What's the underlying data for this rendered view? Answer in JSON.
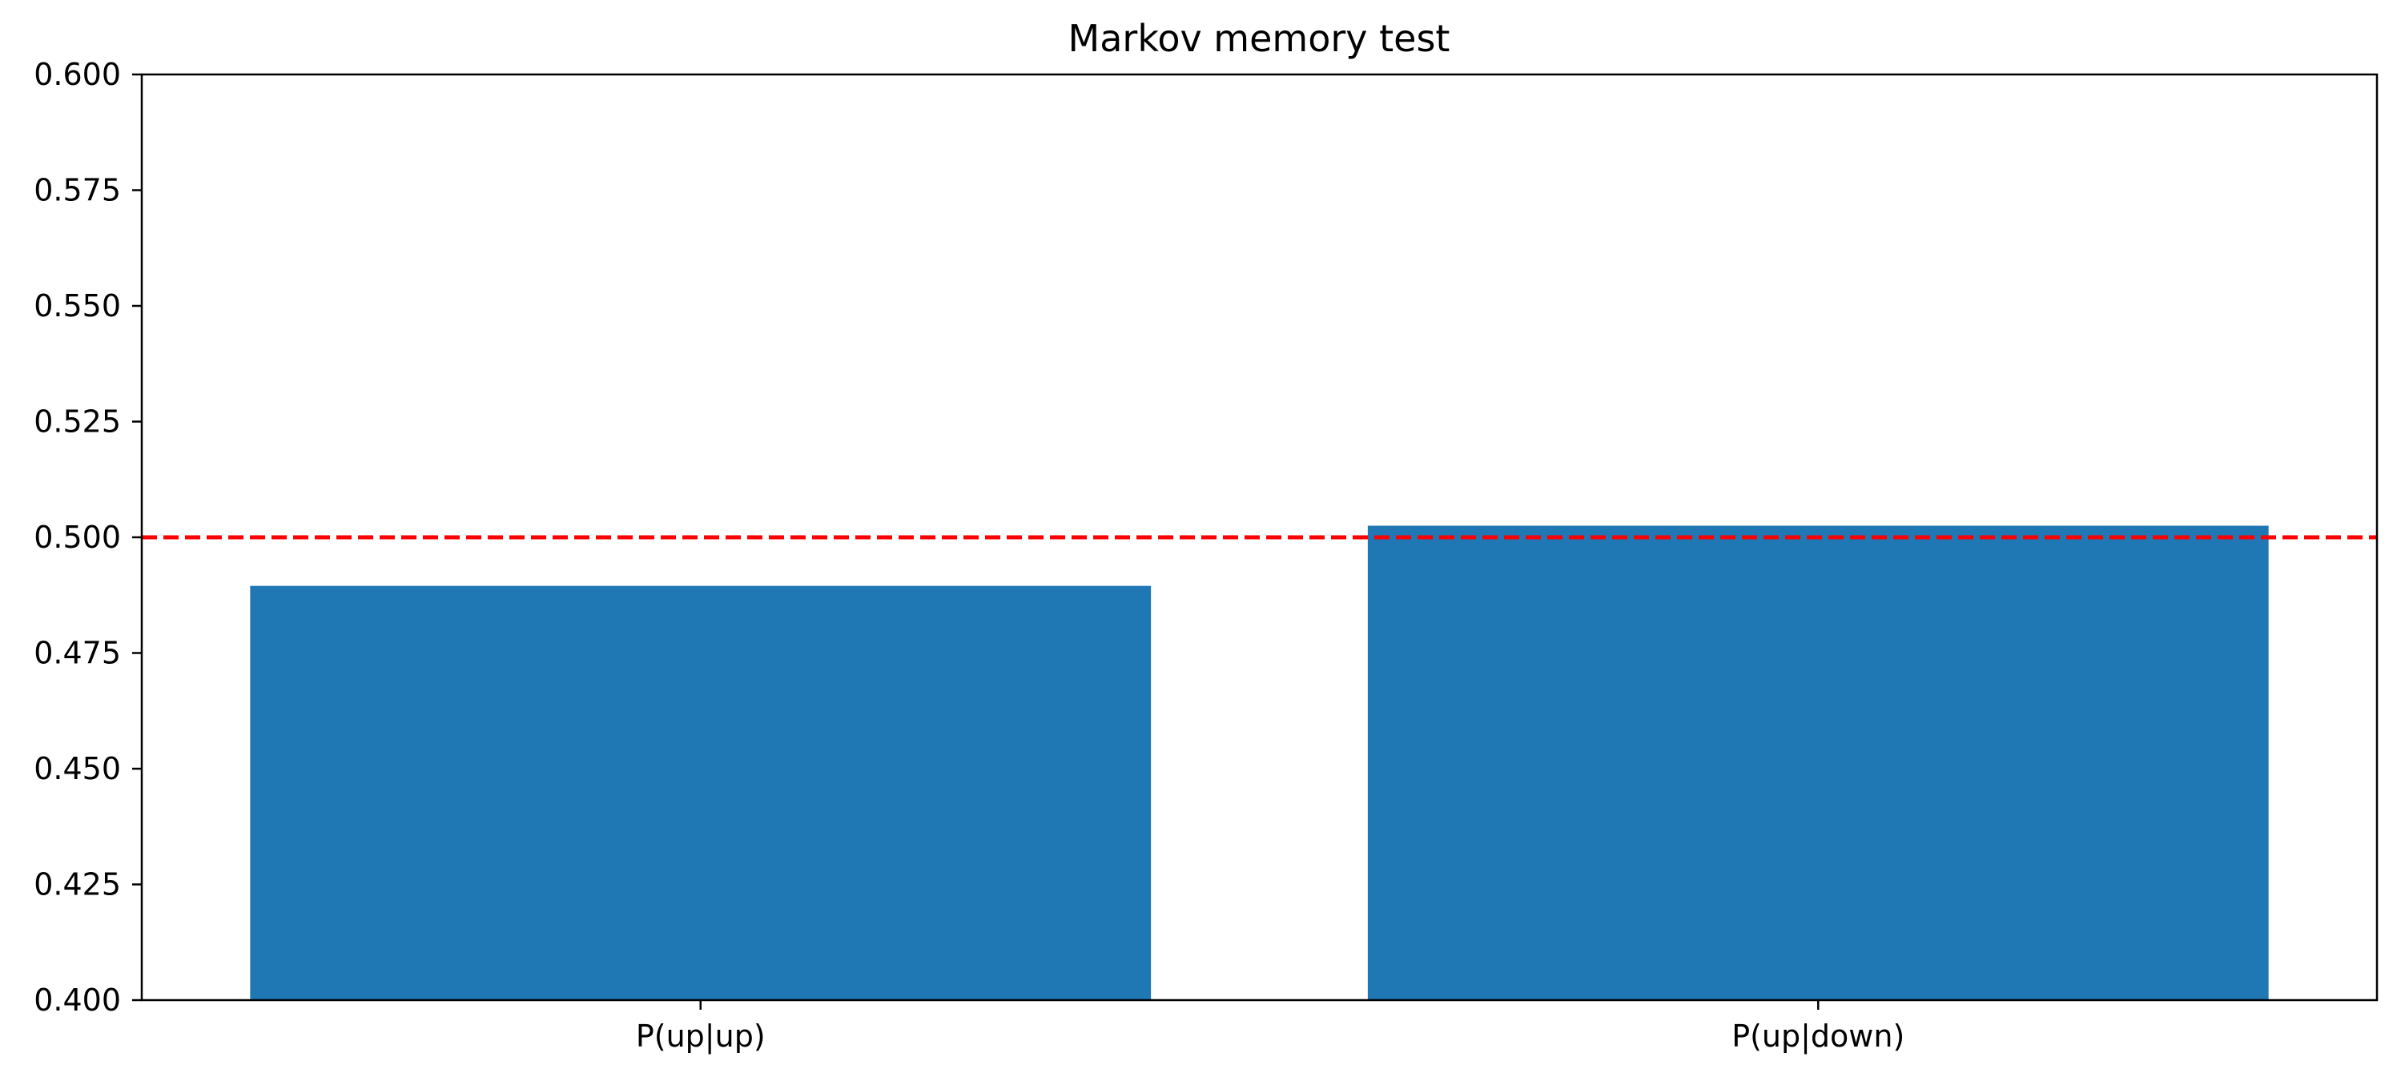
{
  "chart_data": {
    "type": "bar",
    "title": "Markov memory test",
    "xlabel": "",
    "ylabel": "",
    "categories": [
      "P(up|up)",
      "P(up|down)"
    ],
    "values": [
      0.4895,
      0.5025
    ],
    "ylim": [
      0.4,
      0.6
    ],
    "yticks": [
      "0.400",
      "0.425",
      "0.450",
      "0.475",
      "0.500",
      "0.525",
      "0.550",
      "0.575",
      "0.600"
    ],
    "reference_line": {
      "value": 0.5,
      "style": "dashed",
      "color": "#ff0000"
    },
    "bar_color": "#1f77b4",
    "grid": false,
    "legend": "none"
  }
}
